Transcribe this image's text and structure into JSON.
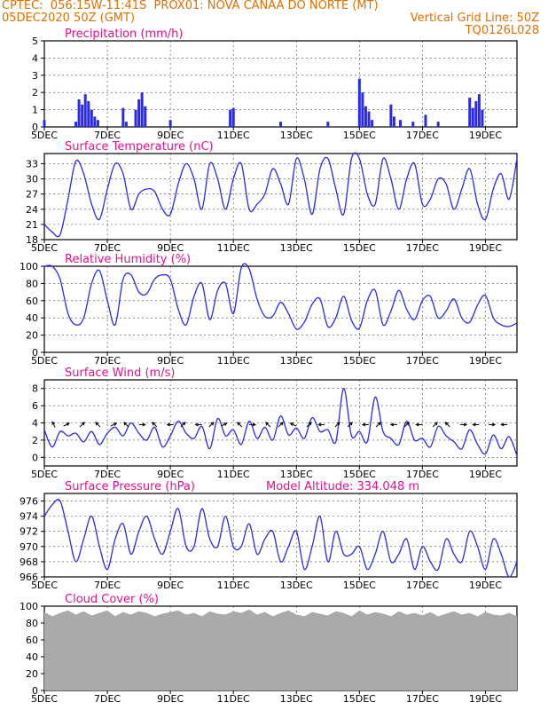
{
  "header": {
    "line1_left": "CPTEC:  056:15W-11:41S  PROX01: NOVA CANAA DO NORTE (MT)",
    "line2_left": "05DEC2020 50Z (GMT)",
    "line2_right": "Vertical Grid Line: 50Z",
    "line3_right": "TQ0126L028"
  },
  "colors": {
    "header": "#e07000",
    "title": "#e8108c",
    "series": "#2a2ae8",
    "cloud": "#aaaaaa",
    "wind_vector": "#000000"
  },
  "x_axis": {
    "days": [
      5,
      20
    ],
    "tick_labels": [
      "5DEC",
      "7DEC",
      "9DEC",
      "11DEC",
      "13DEC",
      "15DEC",
      "17DEC",
      "19DEC"
    ],
    "tick_days": [
      5,
      7,
      9,
      11,
      13,
      15,
      17,
      19
    ]
  },
  "chart_data": [
    {
      "id": "precip",
      "type": "bar",
      "title": "Precipitation (mm/h)",
      "ylim": [
        0,
        5
      ],
      "yticks": [
        0,
        1,
        2,
        3,
        4,
        5
      ],
      "x_day": [
        5.0,
        6.0,
        6.1,
        6.2,
        6.3,
        6.4,
        6.5,
        6.6,
        6.7,
        7.5,
        7.6,
        7.9,
        8.0,
        8.1,
        8.2,
        9.0,
        10.9,
        11.0,
        12.5,
        14.0,
        15.0,
        15.1,
        15.2,
        15.3,
        15.4,
        16.0,
        16.1,
        16.3,
        16.7,
        17.1,
        17.5,
        18.5,
        18.6,
        18.7,
        18.8,
        18.9
      ],
      "values": [
        0.4,
        0.3,
        1.6,
        1.3,
        1.9,
        1.5,
        1.0,
        0.6,
        0.4,
        1.1,
        0.3,
        1.0,
        1.6,
        2.0,
        1.2,
        0.4,
        1.0,
        1.1,
        0.3,
        0.3,
        2.8,
        2.0,
        1.2,
        0.9,
        0.4,
        1.3,
        0.6,
        0.4,
        0.3,
        0.7,
        0.3,
        1.7,
        1.1,
        1.5,
        1.9,
        1.0
      ]
    },
    {
      "id": "temp",
      "type": "line",
      "title": "Surface Temperature (nC)",
      "ylim": [
        18,
        35
      ],
      "yticks": [
        18,
        21,
        24,
        27,
        30,
        33
      ],
      "x_day": [
        5.0,
        5.25,
        5.5,
        5.75,
        6.0,
        6.25,
        6.5,
        6.75,
        7.0,
        7.25,
        7.5,
        7.75,
        8.0,
        8.25,
        8.5,
        8.75,
        9.0,
        9.25,
        9.5,
        9.75,
        10.0,
        10.25,
        10.5,
        10.75,
        11.0,
        11.25,
        11.5,
        11.75,
        12.0,
        12.25,
        12.5,
        12.75,
        13.0,
        13.25,
        13.5,
        13.75,
        14.0,
        14.25,
        14.5,
        14.75,
        15.0,
        15.25,
        15.5,
        15.75,
        16.0,
        16.25,
        16.5,
        16.75,
        17.0,
        17.25,
        17.5,
        17.75,
        18.0,
        18.25,
        18.5,
        18.75,
        19.0,
        19.25,
        19.5,
        19.75,
        20.0
      ],
      "values": [
        21,
        19.5,
        19,
        26,
        33.5,
        31,
        25,
        22,
        28,
        33,
        31,
        24,
        27,
        28,
        27.5,
        24,
        23,
        29,
        33,
        30,
        24,
        33,
        30,
        24,
        30,
        33,
        24,
        25,
        27,
        32,
        29,
        25,
        34,
        30,
        23,
        32,
        34,
        28,
        23,
        34,
        34,
        27,
        25,
        34,
        30,
        24,
        30,
        33,
        25,
        26,
        30,
        29,
        24,
        28,
        32,
        25,
        22,
        28,
        31,
        26,
        34
      ],
      "line": "smooth"
    },
    {
      "id": "rh",
      "type": "line",
      "title": "Relative Humidity (%)",
      "ylim": [
        0,
        100
      ],
      "yticks": [
        0,
        20,
        40,
        60,
        80,
        100
      ],
      "x_day": [
        5.0,
        5.25,
        5.5,
        5.75,
        6.0,
        6.25,
        6.5,
        6.75,
        7.0,
        7.25,
        7.5,
        7.75,
        8.0,
        8.25,
        8.5,
        8.75,
        9.0,
        9.25,
        9.5,
        9.75,
        10.0,
        10.25,
        10.5,
        10.75,
        11.0,
        11.25,
        11.5,
        11.75,
        12.0,
        12.25,
        12.5,
        12.75,
        13.0,
        13.25,
        13.5,
        13.75,
        14.0,
        14.25,
        14.5,
        14.75,
        15.0,
        15.25,
        15.5,
        15.75,
        16.0,
        16.25,
        16.5,
        16.75,
        17.0,
        17.25,
        17.5,
        17.75,
        18.0,
        18.25,
        18.5,
        18.75,
        19.0,
        19.25,
        19.5,
        19.75,
        20.0
      ],
      "values": [
        100,
        100,
        85,
        45,
        32,
        40,
        80,
        95,
        60,
        32,
        85,
        90,
        70,
        68,
        85,
        90,
        85,
        50,
        32,
        65,
        80,
        38,
        72,
        80,
        45,
        98,
        97,
        62,
        42,
        42,
        58,
        45,
        27,
        35,
        56,
        62,
        30,
        40,
        65,
        37,
        28,
        60,
        72,
        32,
        48,
        72,
        50,
        38,
        60,
        65,
        40,
        48,
        62,
        40,
        35,
        55,
        66,
        40,
        32,
        30,
        34
      ],
      "line": "smooth"
    },
    {
      "id": "wind",
      "type": "line",
      "title": "Surface Wind (m/s)",
      "ylim": [
        -1,
        9
      ],
      "yticks": [
        0,
        2,
        4,
        6,
        8
      ],
      "x_day": [
        5.0,
        5.25,
        5.5,
        5.75,
        6.0,
        6.25,
        6.5,
        6.75,
        7.0,
        7.25,
        7.5,
        7.75,
        8.0,
        8.25,
        8.5,
        8.75,
        9.0,
        9.25,
        9.5,
        9.75,
        10.0,
        10.25,
        10.5,
        10.75,
        11.0,
        11.25,
        11.5,
        11.75,
        12.0,
        12.25,
        12.5,
        12.75,
        13.0,
        13.25,
        13.5,
        13.75,
        14.0,
        14.25,
        14.5,
        14.75,
        15.0,
        15.25,
        15.5,
        15.75,
        16.0,
        16.25,
        16.5,
        16.75,
        17.0,
        17.25,
        17.5,
        17.75,
        18.0,
        18.25,
        18.5,
        18.75,
        19.0,
        19.25,
        19.5,
        19.75,
        20.0
      ],
      "values": [
        3.2,
        1.2,
        3.0,
        2.5,
        2.8,
        1.8,
        3.0,
        1.5,
        2.8,
        3.5,
        2.5,
        4.0,
        2.8,
        2.0,
        3.5,
        1.2,
        2.5,
        4.2,
        2.8,
        2.2,
        3.6,
        1.0,
        4.5,
        2.5,
        3.2,
        1.5,
        4.2,
        2.2,
        3.5,
        2.0,
        4.8,
        2.6,
        3.4,
        2.2,
        4.6,
        3.0,
        3.2,
        1.8,
        8.0,
        2.5,
        3.0,
        1.8,
        7.0,
        3.0,
        2.2,
        1.5,
        4.2,
        2.0,
        2.2,
        1.2,
        3.6,
        2.5,
        1.8,
        1.0,
        3.2,
        1.5,
        0.4,
        2.6,
        1.0,
        2.4,
        0.2
      ],
      "vectors_day": [
        5.3,
        5.7,
        6.2,
        6.7,
        7.2,
        7.6,
        8.1,
        8.5,
        9.0,
        9.4,
        9.9,
        10.3,
        10.7,
        11.2,
        11.6,
        12.1,
        12.5,
        12.9,
        13.4,
        13.8,
        14.3,
        14.7,
        15.2,
        15.6,
        16.1,
        16.5,
        16.9,
        17.4,
        17.8,
        18.3,
        18.7,
        19.2,
        19.6
      ],
      "vectors_u": [
        -1,
        1,
        1,
        -1,
        1,
        -1,
        1,
        -1,
        -1,
        1,
        -1,
        1,
        1,
        -1,
        1,
        -1,
        1,
        -1,
        1,
        -1,
        1,
        1,
        -1,
        1,
        -1,
        1,
        -1,
        1,
        -1,
        1,
        -1,
        1,
        -1
      ],
      "vectors_v": [
        2,
        0.5,
        1,
        1,
        0.5,
        1,
        0,
        1,
        0,
        1,
        0,
        1,
        0.5,
        1,
        0,
        1,
        1,
        0.5,
        1,
        0,
        1,
        1,
        0,
        1,
        0,
        1,
        0,
        1,
        1,
        0,
        0,
        0,
        0
      ]
    },
    {
      "id": "pressure",
      "type": "line",
      "title": "Surface Pressure (hPa)",
      "annotation": "Model Altitude: 334.048 m",
      "ylim": [
        966,
        977
      ],
      "yticks": [
        966,
        968,
        970,
        972,
        974,
        976
      ],
      "x_day": [
        5.0,
        5.25,
        5.5,
        5.75,
        6.0,
        6.25,
        6.5,
        6.75,
        7.0,
        7.25,
        7.5,
        7.75,
        8.0,
        8.25,
        8.5,
        8.75,
        9.0,
        9.25,
        9.5,
        9.75,
        10.0,
        10.25,
        10.5,
        10.75,
        11.0,
        11.25,
        11.5,
        11.75,
        12.0,
        12.25,
        12.5,
        12.75,
        13.0,
        13.25,
        13.5,
        13.75,
        14.0,
        14.25,
        14.5,
        14.75,
        15.0,
        15.25,
        15.5,
        15.75,
        16.0,
        16.25,
        16.5,
        16.75,
        17.0,
        17.25,
        17.5,
        17.75,
        18.0,
        18.25,
        18.5,
        18.75,
        19.0,
        19.25,
        19.5,
        19.75,
        20.0
      ],
      "values": [
        974,
        975.5,
        976,
        972,
        968,
        971,
        974,
        970,
        967,
        971,
        973,
        969,
        972,
        974,
        971,
        969,
        972,
        975,
        970,
        970,
        975,
        971,
        970,
        974,
        970,
        970,
        973,
        969,
        971,
        972,
        968,
        970,
        972,
        967,
        970,
        974,
        968,
        972,
        969,
        969,
        970,
        967,
        969,
        972,
        968,
        969,
        971,
        967,
        970,
        968,
        967,
        971,
        969,
        968,
        972,
        970,
        967,
        971,
        969,
        966,
        968
      ],
      "line": "smooth"
    },
    {
      "id": "cloud",
      "type": "area",
      "title": "Cloud Cover (%)",
      "ylim": [
        0,
        100
      ],
      "yticks": [
        0,
        20,
        40,
        60,
        80,
        100
      ],
      "x_day": [
        5.0,
        5.25,
        5.5,
        5.75,
        6.0,
        6.25,
        6.5,
        6.75,
        7.0,
        7.25,
        7.5,
        7.75,
        8.0,
        8.25,
        8.5,
        8.75,
        9.0,
        9.25,
        9.5,
        9.75,
        10.0,
        10.25,
        10.5,
        10.75,
        11.0,
        11.25,
        11.5,
        11.75,
        12.0,
        12.25,
        12.5,
        12.75,
        13.0,
        13.25,
        13.5,
        13.75,
        14.0,
        14.25,
        14.5,
        14.75,
        15.0,
        15.25,
        15.5,
        15.75,
        16.0,
        16.25,
        16.5,
        16.75,
        17.0,
        17.25,
        17.5,
        17.75,
        18.0,
        18.25,
        18.5,
        18.75,
        19.0,
        19.25,
        19.5,
        19.75,
        20.0
      ],
      "values": [
        93,
        88,
        92,
        95,
        90,
        94,
        89,
        92,
        95,
        88,
        93,
        90,
        94,
        92,
        88,
        91,
        93,
        95,
        90,
        92,
        88,
        94,
        91,
        90,
        94,
        92,
        96,
        90,
        93,
        88,
        92,
        95,
        90,
        88,
        93,
        91,
        89,
        94,
        92,
        88,
        95,
        90,
        93,
        91,
        88,
        94,
        90,
        92,
        89,
        93,
        88,
        91,
        94,
        90,
        92,
        88,
        93,
        90,
        89,
        92,
        88
      ]
    }
  ]
}
